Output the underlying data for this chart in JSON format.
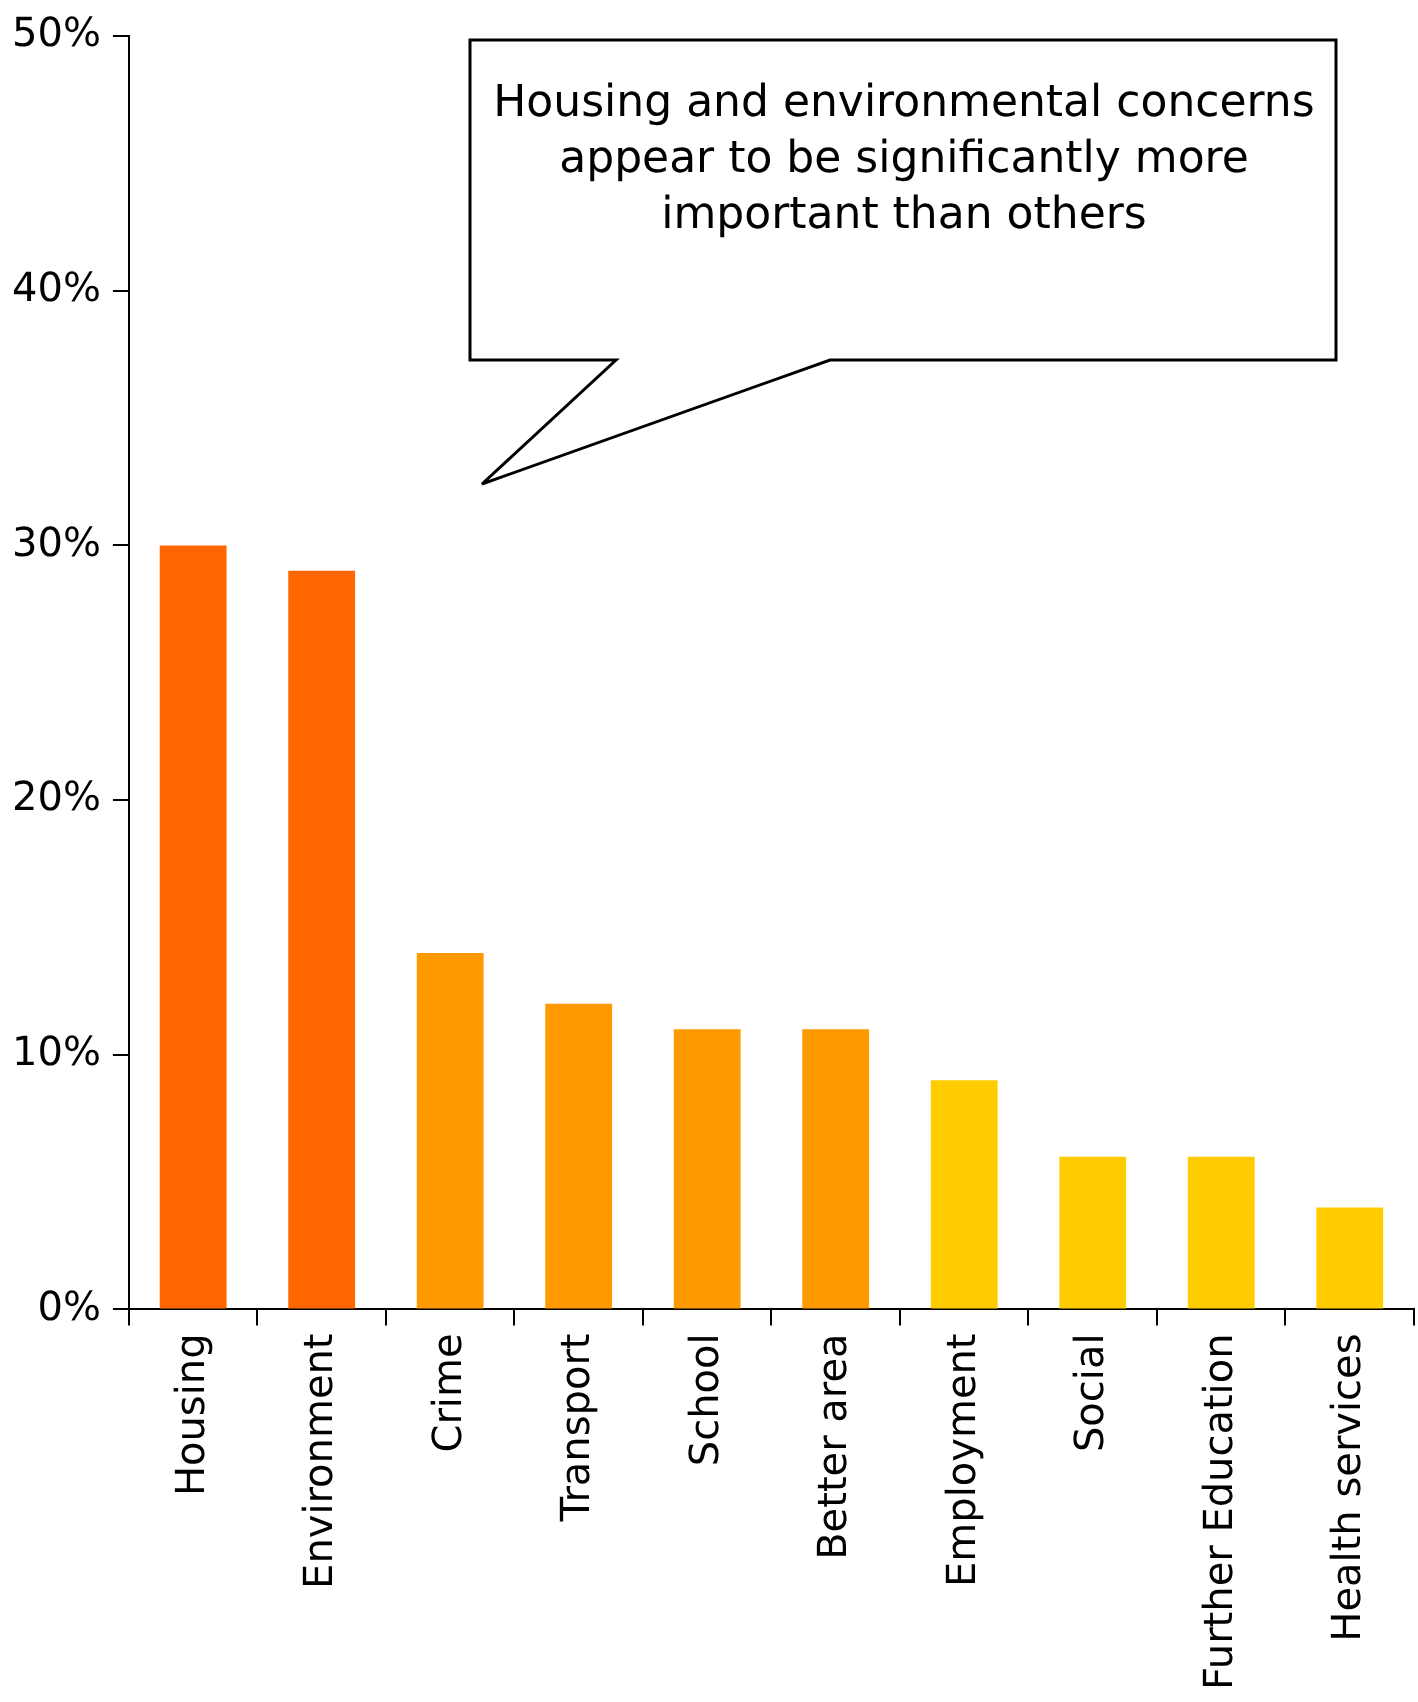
{
  "chart_data": {
    "type": "bar",
    "categories": [
      "Housing",
      "Environment",
      "Crime",
      "Transport",
      "School",
      "Better area",
      "Employment",
      "Social",
      "Further Education",
      "Health services"
    ],
    "values": [
      30,
      29,
      14,
      12,
      11,
      11,
      9,
      6,
      6,
      4
    ],
    "colors": [
      "#ff6600",
      "#ff6600",
      "#ff9900",
      "#ff9900",
      "#ff9900",
      "#ff9900",
      "#ffcc00",
      "#ffcc00",
      "#ffcc00",
      "#ffcc00"
    ],
    "ylim": [
      0,
      50
    ],
    "yticks": [
      {
        "value": 0,
        "label": "0%"
      },
      {
        "value": 10,
        "label": "10%"
      },
      {
        "value": 20,
        "label": "20%"
      },
      {
        "value": 30,
        "label": "30%"
      },
      {
        "value": 40,
        "label": "40%"
      },
      {
        "value": 50,
        "label": "50%"
      }
    ],
    "annotations": [
      "Housing and environmental concerns appear to be significantly more important than others"
    ]
  }
}
